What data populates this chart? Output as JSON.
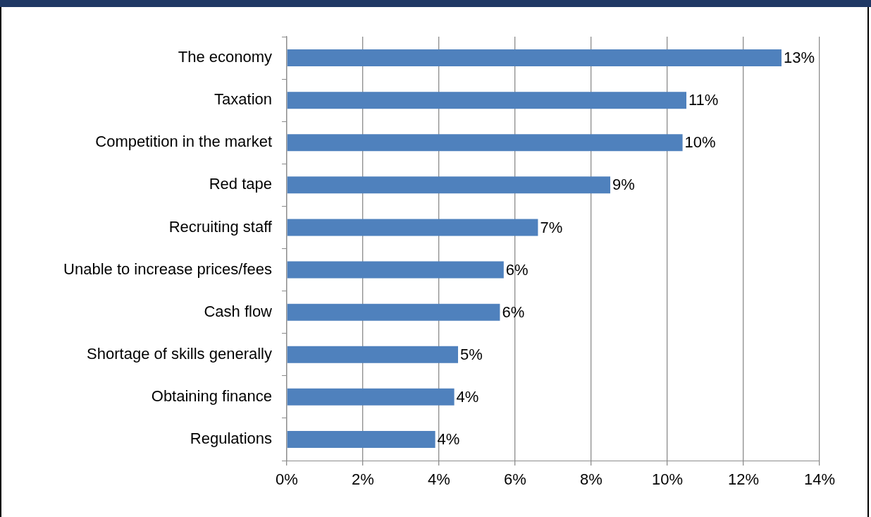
{
  "chart_data": {
    "type": "bar",
    "orientation": "horizontal",
    "categories": [
      "The economy",
      "Taxation",
      "Competition in the market",
      "Red tape",
      "Recruiting staff",
      "Unable to increase prices/fees",
      "Cash flow",
      "Shortage of skills generally",
      "Obtaining finance",
      "Regulations"
    ],
    "values": [
      13.0,
      10.5,
      10.4,
      8.5,
      6.6,
      5.7,
      5.6,
      4.5,
      4.4,
      3.9
    ],
    "value_labels": [
      "13%",
      "11%",
      "10%",
      "9%",
      "7%",
      "6%",
      "6%",
      "5%",
      "4%",
      "4%"
    ],
    "color": "#4f81bd",
    "xlim": [
      0,
      14
    ],
    "xticks": [
      {
        "value": 0,
        "label": "0%"
      },
      {
        "value": 2,
        "label": "2%"
      },
      {
        "value": 4,
        "label": "4%"
      },
      {
        "value": 6,
        "label": "6%"
      },
      {
        "value": 8,
        "label": "8%"
      },
      {
        "value": 10,
        "label": "10%"
      },
      {
        "value": 12,
        "label": "12%"
      },
      {
        "value": 14,
        "label": "14%"
      }
    ],
    "grid": "x",
    "legend": false
  }
}
